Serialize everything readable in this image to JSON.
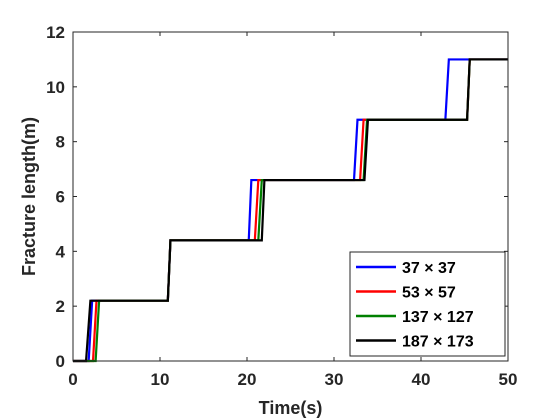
{
  "chart_data": {
    "type": "line",
    "title": "",
    "xlabel": "Time(s)",
    "ylabel": "Fracture length(m)",
    "xlim": [
      0,
      50
    ],
    "ylim": [
      0,
      12
    ],
    "xticks": [
      "0",
      "10",
      "20",
      "30",
      "40",
      "50"
    ],
    "yticks": [
      "0",
      "2",
      "4",
      "6",
      "8",
      "10",
      "12"
    ],
    "grid": false,
    "legend_position": "bottom-right",
    "series": [
      {
        "name": "37 × 37",
        "color": "#0000ff",
        "x": [
          0,
          1.8,
          2.2,
          10.9,
          11.2,
          20.2,
          20.5,
          32.3,
          32.7,
          42.8,
          43.2,
          50
        ],
        "y": [
          0,
          0,
          2.2,
          2.2,
          4.4,
          4.4,
          6.6,
          6.6,
          8.8,
          8.8,
          11.0,
          11.0
        ]
      },
      {
        "name": "53 × 57",
        "color": "#ff0000",
        "x": [
          0,
          2.3,
          2.7,
          10.9,
          11.2,
          20.9,
          21.3,
          33.0,
          33.4,
          45.3,
          45.6,
          50
        ],
        "y": [
          0,
          0,
          2.2,
          2.2,
          4.4,
          4.4,
          6.6,
          6.6,
          8.8,
          8.8,
          11.0,
          11.0
        ]
      },
      {
        "name": "137 × 127",
        "color": "#008000",
        "x": [
          0,
          2.6,
          3.0,
          10.9,
          11.2,
          21.3,
          21.7,
          33.4,
          33.8,
          45.3,
          45.6,
          50
        ],
        "y": [
          0,
          0,
          2.2,
          2.2,
          4.4,
          4.4,
          6.6,
          6.6,
          8.8,
          8.8,
          11.0,
          11.0
        ]
      },
      {
        "name": "187 × 173",
        "color": "#000000",
        "x": [
          0,
          1.5,
          2.0,
          10.9,
          11.2,
          21.7,
          22.0,
          33.5,
          33.9,
          45.3,
          45.6,
          50
        ],
        "y": [
          0,
          0,
          2.2,
          2.2,
          4.4,
          4.4,
          6.6,
          6.6,
          8.8,
          8.8,
          11.0,
          11.0
        ]
      }
    ]
  }
}
